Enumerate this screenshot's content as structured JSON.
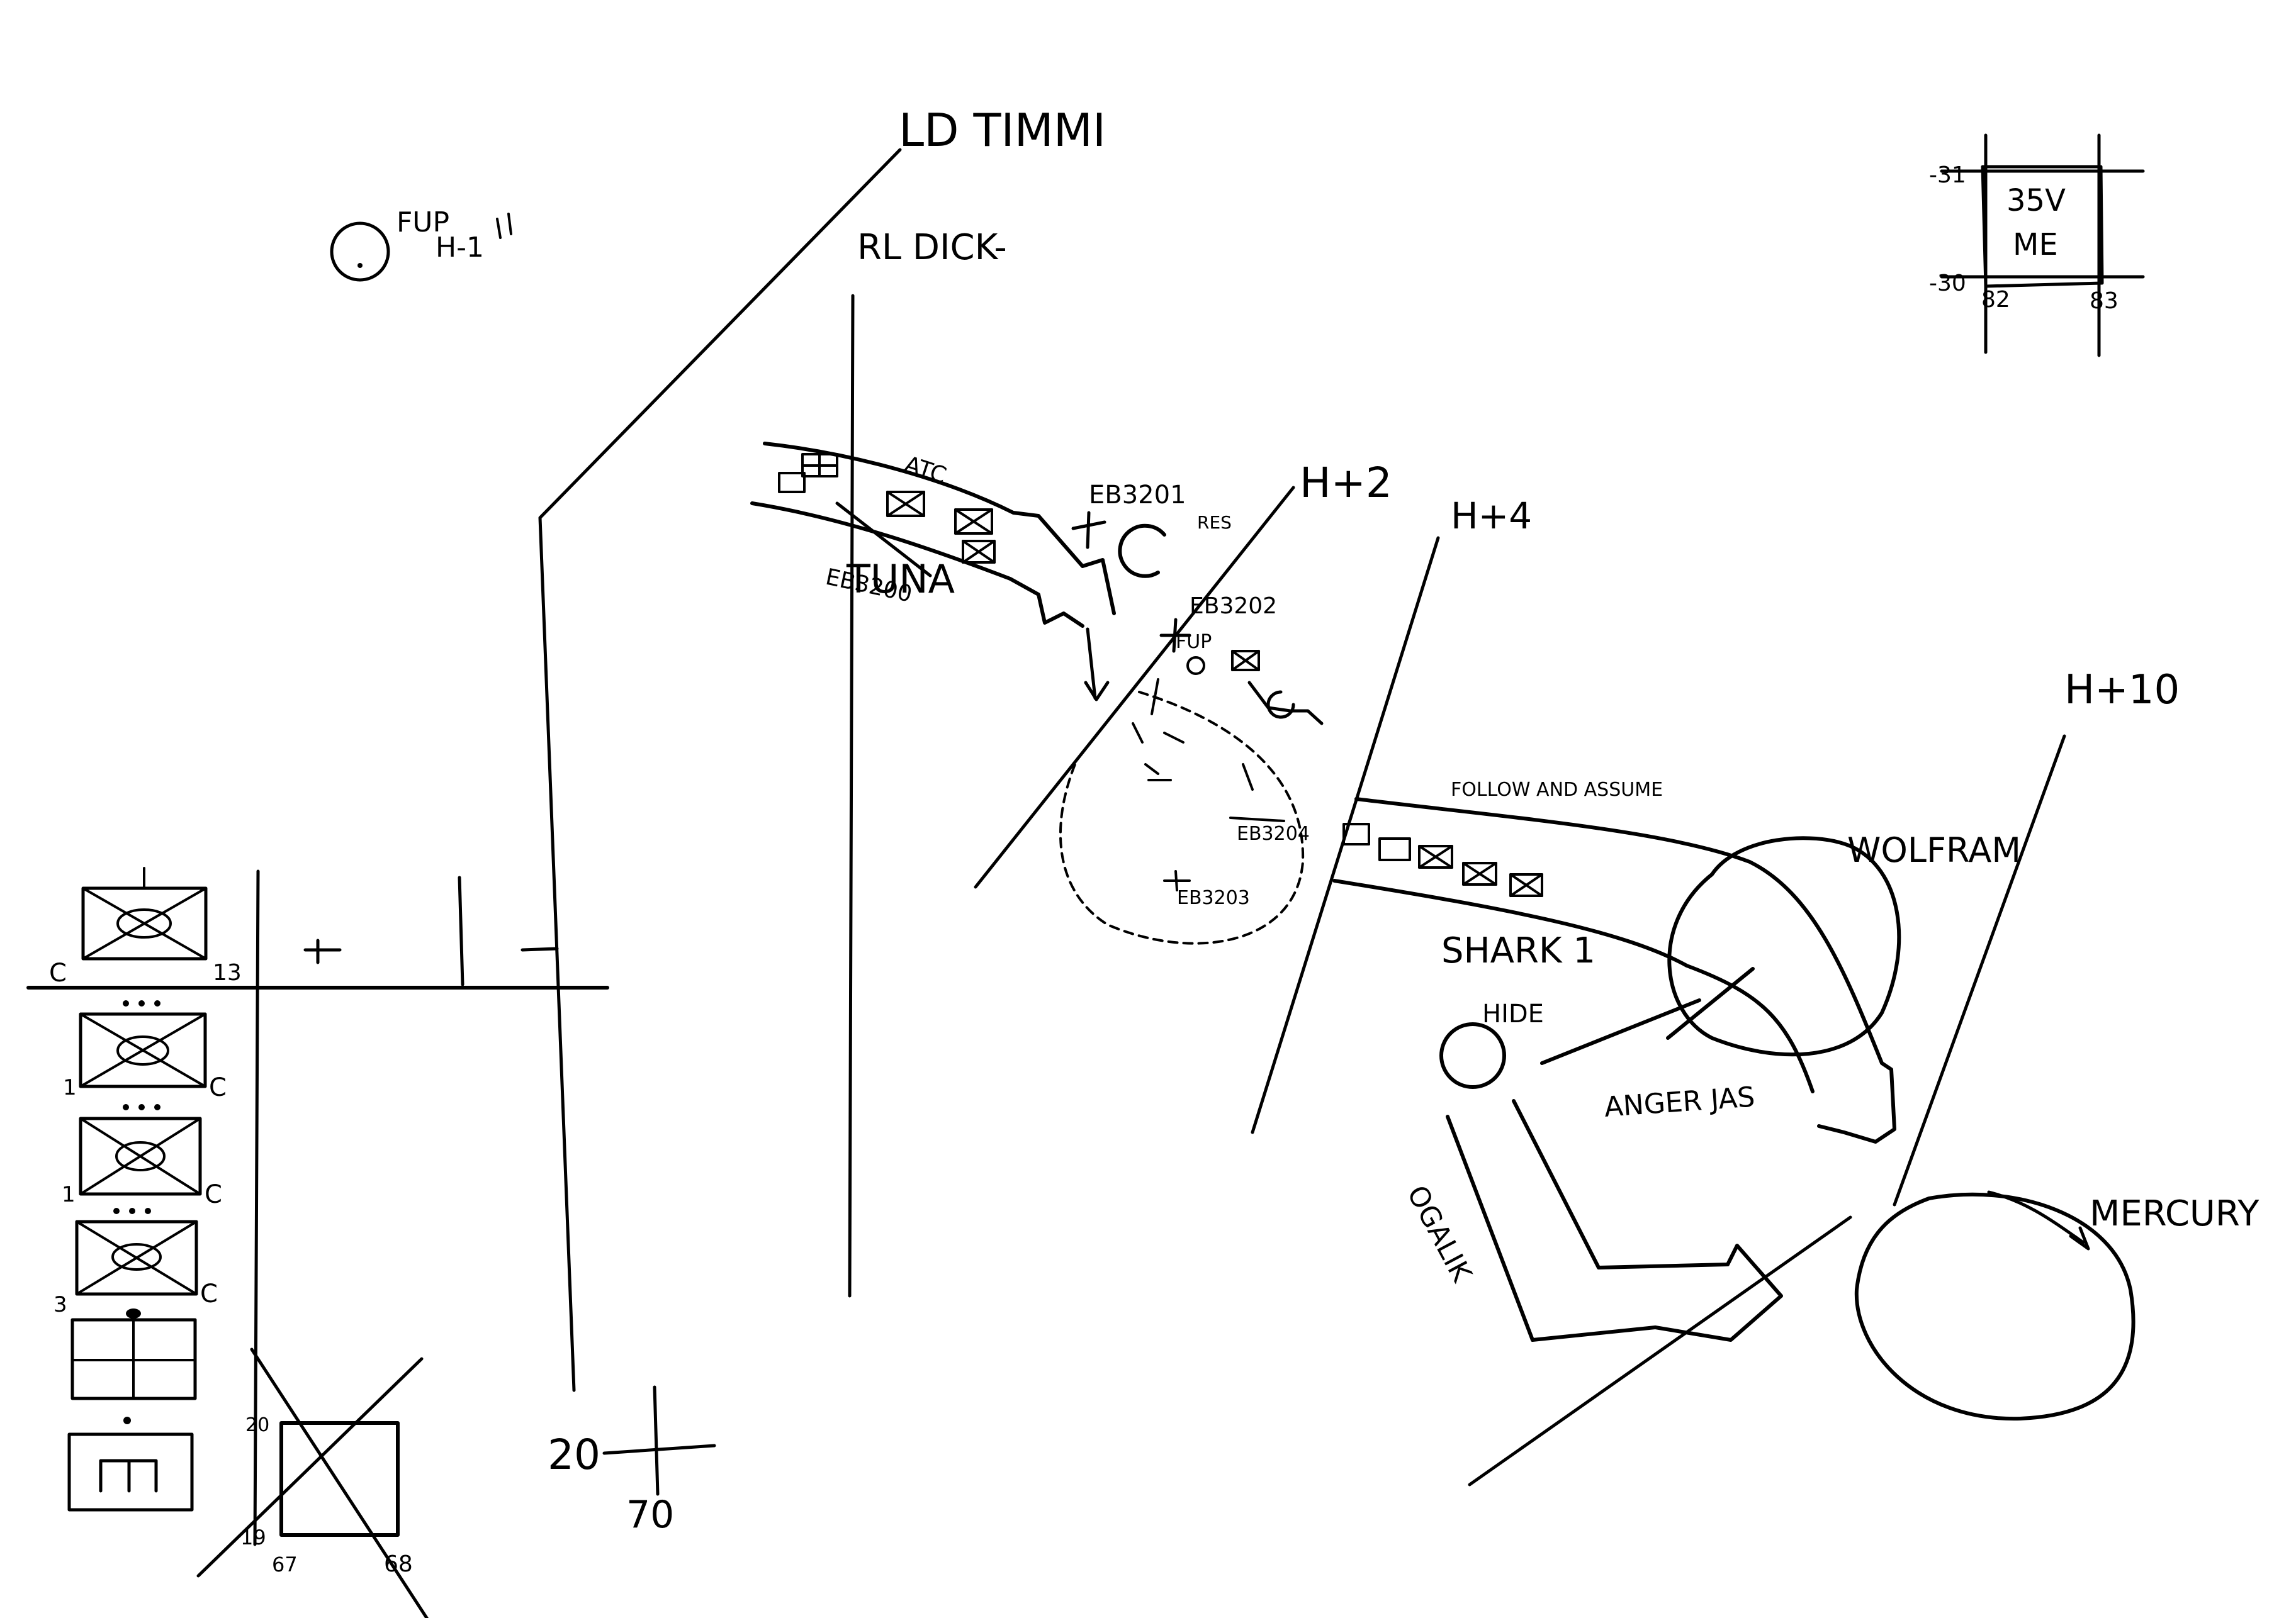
{
  "phase_lines": {
    "ld": "LD TIMMI",
    "rl": "RL DICK-",
    "h2": "H+2",
    "h4": "H+4",
    "h10": "H+10"
  },
  "fup_top": {
    "line1": "FUP",
    "line2": "H-1"
  },
  "routes": {
    "tuna": "TUNA",
    "atc": "ATC",
    "shark": "SHARK 1",
    "follow": "FOLLOW AND ASSUME",
    "anger": "ANGER JAS",
    "ogalik": "OGALIK"
  },
  "objectives": {
    "wolfram": "WOLFRAM",
    "mercury": "MERCURY",
    "hide": "HIDE",
    "res": "RES",
    "fup_mid": "FUP"
  },
  "targets": [
    "EB3200",
    "EB3201",
    "EB3202",
    "EB3203",
    "EB3204"
  ],
  "grid_box": {
    "tl": "-31",
    "bl": "-30",
    "bx1": "82",
    "bx2": "83",
    "line1": "35V",
    "line2": "ME"
  },
  "legend": {
    "c1": "C",
    "n13": "13",
    "n1a": "1",
    "c2": "C",
    "n1b": "1",
    "c3": "C",
    "n3": "3",
    "c4": "C",
    "m_symbol": "m"
  },
  "grid_bottom": {
    "n20": "20",
    "n19": "19",
    "n67": "67",
    "n68": "68"
  },
  "coord_cross": {
    "n20": "20",
    "n70": "70"
  }
}
